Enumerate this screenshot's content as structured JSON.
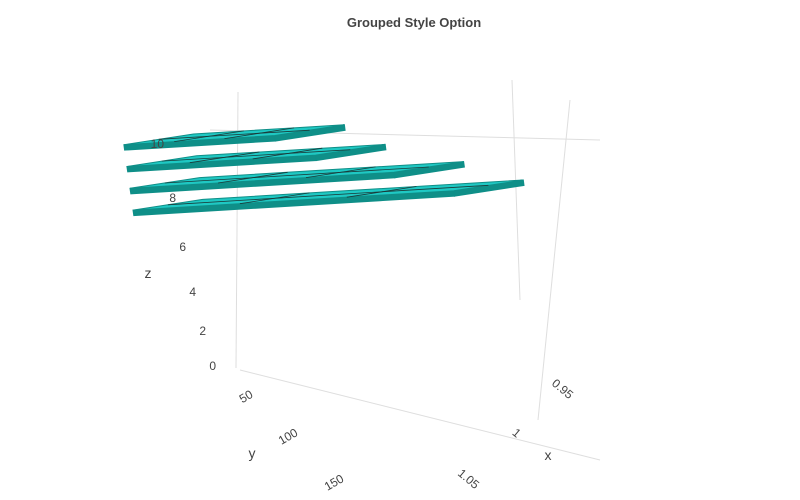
{
  "chart_data": {
    "type": "mesh3d",
    "title": "Grouped Style Option",
    "xlabel": "x",
    "ylabel": "y",
    "zlabel": "z",
    "x_ticks": [
      "0.95",
      "1",
      "1.05"
    ],
    "y_ticks": [
      "50",
      "100",
      "150"
    ],
    "z_ticks": [
      "0",
      "2",
      "4",
      "6",
      "8",
      "10"
    ],
    "xlim": [
      0.93,
      1.07
    ],
    "ylim": [
      0,
      175
    ],
    "zlim": [
      0,
      11
    ],
    "fill_color": "#1fc8c3",
    "edge_color": "#0f8f88",
    "series": [
      {
        "z": 10,
        "y": [
          0,
          80
        ]
      },
      {
        "z": 9,
        "y": [
          0,
          100
        ]
      },
      {
        "z": 8,
        "y": [
          0,
          140
        ]
      },
      {
        "z": 7,
        "y": [
          0,
          170
        ]
      }
    ]
  }
}
